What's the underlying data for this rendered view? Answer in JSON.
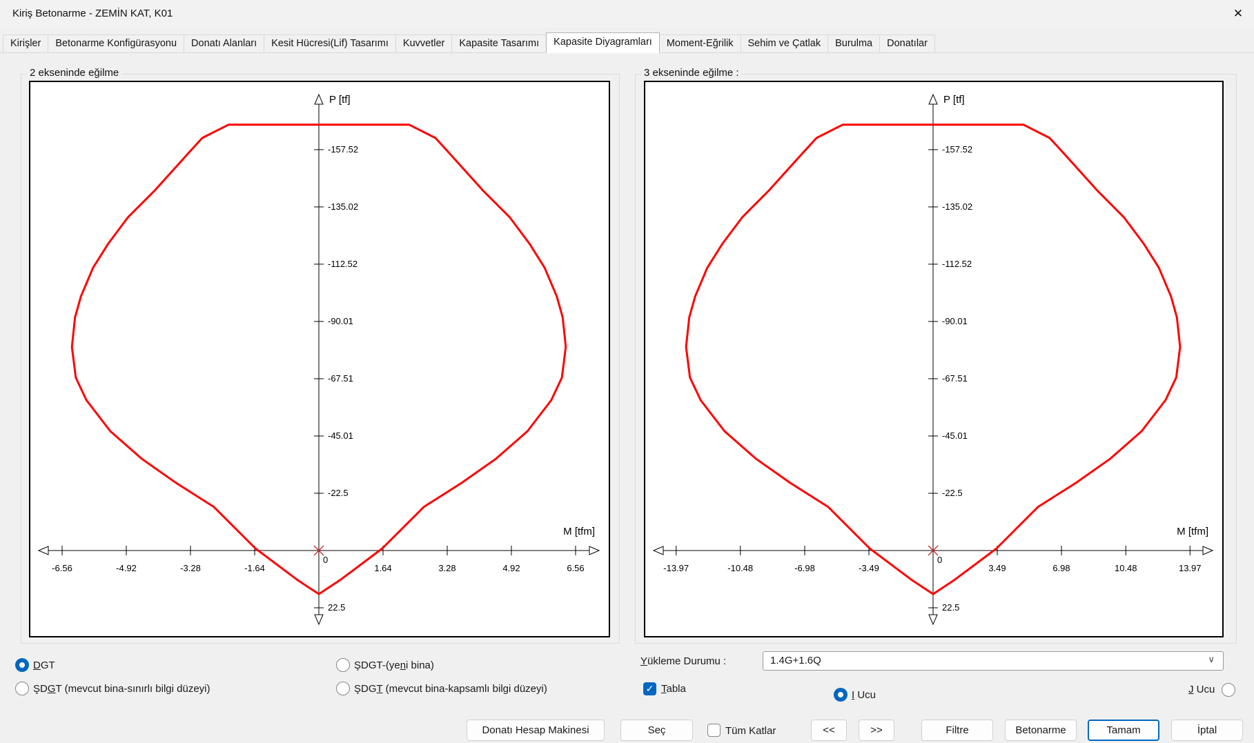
{
  "window": {
    "title": "Kiriş Betonarme - ZEMİN KAT, K01",
    "close_icon": "✕"
  },
  "tabs": {
    "active_index": 6,
    "items": [
      "Kirişler",
      "Betonarme Konfigürasyonu",
      "Donatı Alanları",
      "Kesit Hücresi(Lif) Tasarımı",
      "Kuvvetler",
      "Kapasite Tasarımı",
      "Kapasite Diyagramları",
      "Moment-Eğrilik",
      "Sehim ve Çatlak",
      "Burulma",
      "Donatılar"
    ]
  },
  "panels": {
    "left_title": "2 ekseninde eğilme",
    "right_title": "3 ekseninde eğilme :"
  },
  "chart_data": [
    {
      "type": "line",
      "title": "2 ekseninde eğilme",
      "xlabel": "M [tfm]",
      "ylabel": "P [tf]",
      "origin_label": "0",
      "x_ticks": [
        -6.56,
        -4.92,
        -3.28,
        -1.64,
        1.64,
        3.28,
        4.92,
        6.56
      ],
      "y_ticks": [
        -157.52,
        -135.02,
        -112.52,
        -90.01,
        -67.51,
        -45.01,
        -22.5,
        22.5
      ],
      "x_tick_step": 1.64,
      "y_tick_step": 22.5,
      "x_range": [
        -7.2,
        7.2
      ],
      "y_range": [
        -178,
        27
      ],
      "grid": false,
      "series": [
        {
          "name": "P-M kapasite zarfı",
          "color": "#ff0000",
          "symmetric_about_M0": true,
          "points_half_M_P": [
            [
              -2.31,
              -167.3
            ],
            [
              -2.98,
              -162.1
            ],
            [
              -3.33,
              -156.2
            ],
            [
              -4.21,
              -141.2
            ],
            [
              -4.88,
              -130.9
            ],
            [
              -5.38,
              -120.6
            ],
            [
              -5.77,
              -111.1
            ],
            [
              -6.08,
              -99.8
            ],
            [
              -6.23,
              -91.6
            ],
            [
              -6.31,
              -80.0
            ],
            [
              -6.21,
              -68.0
            ],
            [
              -5.94,
              -59.1
            ],
            [
              -5.33,
              -46.9
            ],
            [
              -4.53,
              -36.1
            ],
            [
              -3.65,
              -26.6
            ],
            [
              -2.68,
              -17.1
            ],
            [
              -1.62,
              -0.8
            ],
            [
              -0.56,
              11.4
            ],
            [
              0.0,
              17.1
            ]
          ]
        }
      ]
    },
    {
      "type": "line",
      "title": "3 ekseninde eğilme",
      "xlabel": "M [tfm]",
      "ylabel": "P [tf]",
      "origin_label": "0",
      "x_ticks": [
        -13.97,
        -10.48,
        -6.98,
        -3.49,
        3.49,
        6.98,
        10.48,
        13.97
      ],
      "y_ticks": [
        -157.52,
        -135.02,
        -112.52,
        -90.01,
        -67.51,
        -45.01,
        -22.5,
        22.5
      ],
      "x_tick_step": 3.49,
      "y_tick_step": 22.5,
      "x_range": [
        -15.3,
        15.3
      ],
      "y_range": [
        -178,
        27
      ],
      "grid": false,
      "series": [
        {
          "name": "P-M kapasite zarfı",
          "color": "#ff0000",
          "symmetric_about_M0": true,
          "points_half_M_P": [
            [
              -4.92,
              -167.3
            ],
            [
              -6.34,
              -162.1
            ],
            [
              -7.09,
              -156.2
            ],
            [
              -8.96,
              -141.2
            ],
            [
              -10.38,
              -130.9
            ],
            [
              -11.45,
              -120.6
            ],
            [
              -12.28,
              -111.1
            ],
            [
              -12.94,
              -99.8
            ],
            [
              -13.26,
              -91.6
            ],
            [
              -13.43,
              -80.0
            ],
            [
              -13.22,
              -68.0
            ],
            [
              -12.64,
              -59.1
            ],
            [
              -11.34,
              -46.9
            ],
            [
              -9.64,
              -36.1
            ],
            [
              -7.77,
              -26.6
            ],
            [
              -5.7,
              -17.1
            ],
            [
              -3.45,
              -0.8
            ],
            [
              -1.19,
              11.4
            ],
            [
              0.0,
              17.1
            ]
          ]
        }
      ]
    }
  ],
  "design_method": {
    "options": [
      {
        "pre": "",
        "key": "D",
        "post": "GT",
        "selected": true
      },
      {
        "pre": "ŞDGT-(ye",
        "key": "n",
        "post": "i bina)",
        "selected": false
      },
      {
        "pre": "ŞD",
        "key": "G",
        "post": "T (mevcut bina-sınırlı bilgi düzeyi)",
        "selected": false
      },
      {
        "pre": "ŞDG",
        "key": "T",
        "post": " (mevcut bina-kapsamlı bilgi düzeyi)",
        "selected": false
      }
    ]
  },
  "load_case": {
    "label_pre": "",
    "label_key": "Y",
    "label_post": "ükleme Durumu :",
    "value": "1.4G+1.6Q"
  },
  "tabla": {
    "key": "T",
    "post": "abla",
    "checked": true
  },
  "ends": {
    "i_key": "I",
    "i_post": " Ucu",
    "i_selected": true,
    "j_key": "J",
    "j_post": " Ucu",
    "j_selected": false
  },
  "footer": {
    "tum_katlar_label": "Tüm Katlar",
    "tum_katlar_checked": false,
    "buttons": [
      "Donatı Hesap Makinesi",
      "Seç",
      "<<",
      ">>",
      "Filtre",
      "Betonarme",
      "Tamam",
      "İptal"
    ],
    "default_button": "Tamam"
  },
  "icons": {
    "check": "✓",
    "combo_chevron": "∨"
  },
  "colors": {
    "dialog_bg": "#f0f0f0",
    "chart_bg": "#ffffff",
    "envelope": "#ff0000",
    "axis": "#000000",
    "accent_blue": "#0067c0",
    "tab_active_bg": "#ffffff"
  }
}
